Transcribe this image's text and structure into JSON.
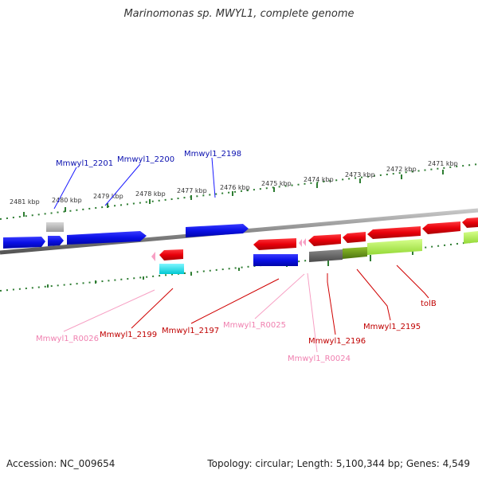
{
  "title": "Marinomonas sp. MWYL1, complete genome",
  "footer": {
    "accession": "Accession: NC_009654",
    "topology": "Topology: circular; Length: 5,100,344 bp; Genes: 4,549"
  },
  "scale_labels": [
    "2481 kbp",
    "2480 kbp",
    "2479 kbp",
    "2478 kbp",
    "2477 kbp",
    "2476 kbp",
    "2475 kbp",
    "2474 kbp",
    "2473 kbp",
    "2472 kbp",
    "2471 kbp"
  ],
  "gene_labels": {
    "mmwyl1_2201": "Mmwyl1_2201",
    "mmwyl1_2200": "Mmwyl1_2200",
    "mmwyl1_2198": "Mmwyl1_2198",
    "mmwyl1_r0026": "Mmwyl1_R0026",
    "mmwyl1_2199": "Mmwyl1_2199",
    "mmwyl1_2197": "Mmwyl1_2197",
    "mmwyl1_r0025": "Mmwyl1_R0025",
    "mmwyl1_2196": "Mmwyl1_2196",
    "mmwyl1_r0024": "Mmwyl1_R0024",
    "mmwyl1_2195": "Mmwyl1_2195",
    "tolb": "tolB"
  },
  "colors": {
    "forward_gene": "#0a10e6",
    "reverse_gene": "#e8000a",
    "rna": "#f7a0c4",
    "pseudo_gray": "#b8b8b8",
    "cyan": "#00e5ee",
    "dark_gray": "#666666",
    "olive": "#6d9a1a",
    "lime": "#b6f35a",
    "backbone": "#8a8a8a",
    "tick": "#2e7d32"
  }
}
